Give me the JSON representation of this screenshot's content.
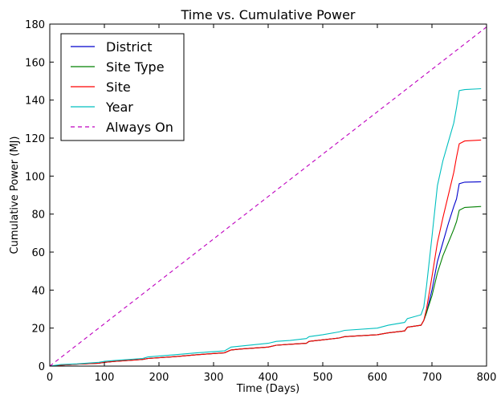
{
  "chart_data": {
    "type": "line",
    "title": "Time vs. Cumulative Power",
    "xlabel": "Time (Days)",
    "ylabel": "Cumulative Power (MJ)",
    "xlim": [
      0,
      800
    ],
    "ylim": [
      0,
      180
    ],
    "xticks": [
      0,
      100,
      200,
      300,
      400,
      500,
      600,
      700,
      800
    ],
    "yticks": [
      0,
      20,
      40,
      60,
      80,
      100,
      120,
      140,
      160,
      180
    ],
    "grid": false,
    "legend_position": "top-left",
    "series": [
      {
        "name": "District",
        "color": "#0000cc",
        "dash": "",
        "points": [
          [
            0,
            0
          ],
          [
            20,
            0.5
          ],
          [
            50,
            1.0
          ],
          [
            90,
            1.5
          ],
          [
            100,
            2.0
          ],
          [
            120,
            2.5
          ],
          [
            170,
            3.5
          ],
          [
            180,
            4.0
          ],
          [
            230,
            5.0
          ],
          [
            270,
            6.0
          ],
          [
            320,
            7.0
          ],
          [
            332,
            8.5
          ],
          [
            350,
            9.0
          ],
          [
            400,
            10.0
          ],
          [
            415,
            11.0
          ],
          [
            440,
            11.5
          ],
          [
            470,
            12.0
          ],
          [
            475,
            13.0
          ],
          [
            500,
            13.8
          ],
          [
            530,
            14.8
          ],
          [
            540,
            15.5
          ],
          [
            600,
            16.5
          ],
          [
            620,
            17.5
          ],
          [
            650,
            18.5
          ],
          [
            655,
            20.5
          ],
          [
            680,
            21.5
          ],
          [
            685,
            24.0
          ],
          [
            690,
            28.0
          ],
          [
            700,
            40.0
          ],
          [
            710,
            55.0
          ],
          [
            720,
            65.0
          ],
          [
            730,
            75.0
          ],
          [
            740,
            84.0
          ],
          [
            745,
            88.0
          ],
          [
            750,
            96.0
          ],
          [
            760,
            96.8
          ],
          [
            790,
            97.0
          ]
        ]
      },
      {
        "name": "Site Type",
        "color": "#008000",
        "dash": "",
        "points": [
          [
            0,
            0
          ],
          [
            20,
            0.5
          ],
          [
            50,
            1.0
          ],
          [
            90,
            1.5
          ],
          [
            100,
            2.0
          ],
          [
            120,
            2.5
          ],
          [
            170,
            3.5
          ],
          [
            180,
            4.0
          ],
          [
            230,
            5.0
          ],
          [
            270,
            6.0
          ],
          [
            320,
            7.0
          ],
          [
            332,
            8.5
          ],
          [
            350,
            9.0
          ],
          [
            400,
            10.0
          ],
          [
            415,
            11.0
          ],
          [
            440,
            11.5
          ],
          [
            470,
            12.0
          ],
          [
            475,
            13.0
          ],
          [
            500,
            13.8
          ],
          [
            530,
            14.8
          ],
          [
            540,
            15.5
          ],
          [
            600,
            16.5
          ],
          [
            620,
            17.5
          ],
          [
            650,
            18.5
          ],
          [
            655,
            20.5
          ],
          [
            680,
            21.5
          ],
          [
            685,
            24.0
          ],
          [
            690,
            28.0
          ],
          [
            700,
            37.0
          ],
          [
            710,
            49.0
          ],
          [
            720,
            58.0
          ],
          [
            730,
            65.0
          ],
          [
            740,
            72.0
          ],
          [
            745,
            76.0
          ],
          [
            750,
            82.0
          ],
          [
            760,
            83.5
          ],
          [
            790,
            84.0
          ]
        ]
      },
      {
        "name": "Site",
        "color": "#ff0000",
        "dash": "",
        "points": [
          [
            0,
            0
          ],
          [
            20,
            0.5
          ],
          [
            50,
            1.0
          ],
          [
            90,
            1.5
          ],
          [
            100,
            2.0
          ],
          [
            120,
            2.5
          ],
          [
            170,
            3.5
          ],
          [
            180,
            4.0
          ],
          [
            230,
            5.0
          ],
          [
            270,
            6.0
          ],
          [
            320,
            7.0
          ],
          [
            332,
            8.5
          ],
          [
            350,
            9.0
          ],
          [
            400,
            10.0
          ],
          [
            415,
            11.0
          ],
          [
            440,
            11.5
          ],
          [
            470,
            12.0
          ],
          [
            475,
            13.0
          ],
          [
            500,
            13.8
          ],
          [
            530,
            14.8
          ],
          [
            540,
            15.5
          ],
          [
            600,
            16.5
          ],
          [
            620,
            17.5
          ],
          [
            650,
            18.5
          ],
          [
            655,
            20.5
          ],
          [
            680,
            21.5
          ],
          [
            685,
            24.0
          ],
          [
            690,
            30.0
          ],
          [
            700,
            47.0
          ],
          [
            710,
            65.0
          ],
          [
            720,
            78.0
          ],
          [
            730,
            90.0
          ],
          [
            740,
            102.0
          ],
          [
            745,
            110.0
          ],
          [
            750,
            117.0
          ],
          [
            760,
            118.5
          ],
          [
            790,
            119.0
          ]
        ]
      },
      {
        "name": "Year",
        "color": "#00bfbf",
        "dash": "",
        "points": [
          [
            0,
            0
          ],
          [
            20,
            0.8
          ],
          [
            50,
            1.2
          ],
          [
            90,
            2.0
          ],
          [
            100,
            2.5
          ],
          [
            120,
            3.0
          ],
          [
            170,
            4.0
          ],
          [
            180,
            4.8
          ],
          [
            230,
            6.0
          ],
          [
            270,
            7.0
          ],
          [
            320,
            8.0
          ],
          [
            332,
            10.0
          ],
          [
            350,
            10.5
          ],
          [
            400,
            12.0
          ],
          [
            415,
            13.0
          ],
          [
            440,
            13.5
          ],
          [
            470,
            14.5
          ],
          [
            475,
            15.5
          ],
          [
            500,
            16.5
          ],
          [
            530,
            18.0
          ],
          [
            540,
            18.8
          ],
          [
            600,
            20.0
          ],
          [
            620,
            21.5
          ],
          [
            650,
            23.0
          ],
          [
            655,
            25.0
          ],
          [
            680,
            27.0
          ],
          [
            685,
            31.0
          ],
          [
            690,
            42.0
          ],
          [
            700,
            68.0
          ],
          [
            710,
            95.0
          ],
          [
            720,
            108.0
          ],
          [
            730,
            118.0
          ],
          [
            740,
            128.0
          ],
          [
            745,
            136.0
          ],
          [
            750,
            145.0
          ],
          [
            760,
            145.5
          ],
          [
            790,
            146.0
          ]
        ]
      },
      {
        "name": "Always On",
        "color": "#bf00bf",
        "dash": "5,4",
        "points": [
          [
            0,
            0
          ],
          [
            800,
            178.5
          ]
        ]
      }
    ]
  }
}
